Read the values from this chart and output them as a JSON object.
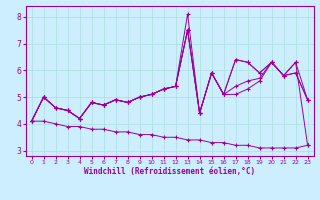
{
  "xlabel": "Windchill (Refroidissement éolien,°C)",
  "bg_color": "#cceeff",
  "grid_color": "#aadddd",
  "line_color": "#990099",
  "ylim": [
    2.8,
    8.4
  ],
  "xlim": [
    -0.5,
    23.5
  ],
  "yticks": [
    3,
    4,
    5,
    6,
    7,
    8
  ],
  "xticks": [
    0,
    1,
    2,
    3,
    4,
    5,
    6,
    7,
    8,
    9,
    10,
    11,
    12,
    13,
    14,
    15,
    16,
    17,
    18,
    19,
    20,
    21,
    22,
    23
  ],
  "lines": [
    [
      4.1,
      5.0,
      4.6,
      4.5,
      4.2,
      4.8,
      4.7,
      4.9,
      4.8,
      5.0,
      5.1,
      5.3,
      5.4,
      8.1,
      4.4,
      5.9,
      5.1,
      5.1,
      5.3,
      5.6,
      6.3,
      5.8,
      5.9,
      4.9
    ],
    [
      4.1,
      5.0,
      4.6,
      4.5,
      4.2,
      4.8,
      4.7,
      4.9,
      4.8,
      5.0,
      5.1,
      5.3,
      5.4,
      7.5,
      4.4,
      5.9,
      5.1,
      5.4,
      5.6,
      5.7,
      6.3,
      5.8,
      5.9,
      4.9
    ],
    [
      4.1,
      5.0,
      4.6,
      4.5,
      4.2,
      4.8,
      4.7,
      4.9,
      4.8,
      5.0,
      5.1,
      5.3,
      5.4,
      7.5,
      4.4,
      5.9,
      5.1,
      6.4,
      6.3,
      5.9,
      6.3,
      5.8,
      6.3,
      4.9
    ],
    [
      4.1,
      5.0,
      4.6,
      4.5,
      4.2,
      4.8,
      4.7,
      4.9,
      4.8,
      5.0,
      5.1,
      5.3,
      5.4,
      7.5,
      4.4,
      5.9,
      5.1,
      6.4,
      6.3,
      5.9,
      6.3,
      5.8,
      6.3,
      3.2
    ],
    [
      4.1,
      4.1,
      4.0,
      3.9,
      3.9,
      3.8,
      3.8,
      3.7,
      3.7,
      3.6,
      3.6,
      3.5,
      3.5,
      3.4,
      3.4,
      3.3,
      3.3,
      3.2,
      3.2,
      3.1,
      3.1,
      3.1,
      3.1,
      3.2
    ]
  ]
}
